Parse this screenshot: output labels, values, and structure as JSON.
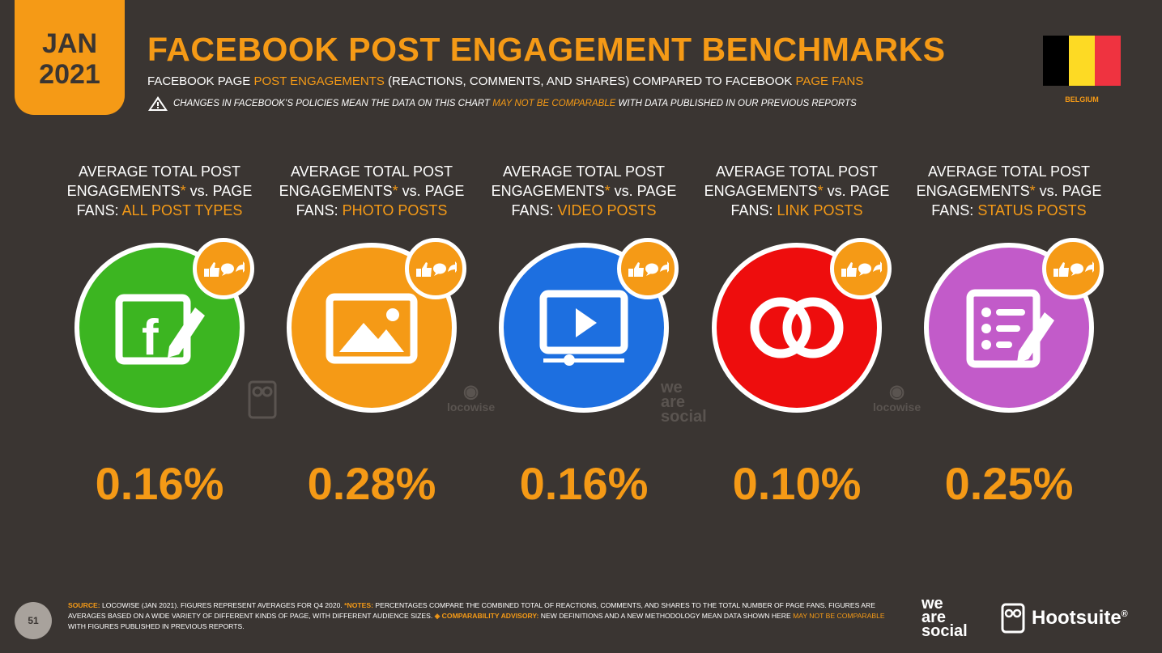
{
  "header": {
    "month": "JAN",
    "year": "2021",
    "title": "FACEBOOK POST ENGAGEMENT BENCHMARKS",
    "subtitle_a": "FACEBOOK PAGE ",
    "subtitle_b": "POST ENGAGEMENTS",
    "subtitle_c": " (REACTIONS, COMMENTS, AND SHARES) COMPARED TO FACEBOOK ",
    "subtitle_d": "PAGE FANS",
    "warning_a": "CHANGES IN FACEBOOK’S POLICIES MEAN THE DATA ON THIS CHART ",
    "warning_b": "MAY NOT BE COMPARABLE",
    "warning_c": " WITH DATA PUBLISHED IN OUR PREVIOUS REPORTS",
    "country": "BELGIUM"
  },
  "colors": {
    "accent": "#f59a16",
    "background": "#3a3532",
    "flag": [
      "#000000",
      "#fdda24",
      "#ef3340"
    ]
  },
  "label_common_a": "AVERAGE TOTAL POST",
  "label_common_b": "ENGAGEMENTS",
  "label_common_star": "*",
  "label_common_c": " vs. PAGE",
  "label_common_d": "FANS: ",
  "metrics": [
    {
      "type": "ALL POST TYPES",
      "value": "0.16%",
      "color": "#3cb521",
      "icon": "facebook-edit-icon"
    },
    {
      "type": "PHOTO POSTS",
      "value": "0.28%",
      "color": "#f59a16",
      "icon": "image-icon"
    },
    {
      "type": "VIDEO POSTS",
      "value": "0.16%",
      "color": "#1d6fe0",
      "icon": "video-play-icon"
    },
    {
      "type": "LINK POSTS",
      "value": "0.10%",
      "color": "#ee0d0d",
      "icon": "link-rings-icon"
    },
    {
      "type": "STATUS POSTS",
      "value": "0.25%",
      "color": "#c25bc9",
      "icon": "status-list-icon"
    }
  ],
  "watermarks": {
    "locowise": "locowise",
    "we_are_social": [
      "we",
      "are",
      "social"
    ]
  },
  "footer": {
    "page_number": "51",
    "source_label": "SOURCE:",
    "source_text": " LOCOWISE (JAN 2021). FIGURES REPRESENT AVERAGES FOR Q4 2020. ",
    "notes_label": "*NOTES:",
    "notes_text": " PERCENTAGES COMPARE THE COMBINED TOTAL OF REACTIONS, COMMENTS, AND SHARES TO THE TOTAL NUMBER OF PAGE FANS. FIGURES ARE AVERAGES BASED ON A WIDE VARIETY OF DIFFERENT KINDS OF PAGE, WITH DIFFERENT AUDIENCE SIZES. ",
    "advisory_label": "◈ COMPARABILITY ADVISORY:",
    "advisory_text": " NEW DEFINITIONS AND A NEW METHODOLOGY MEAN DATA SHOWN HERE ",
    "advisory_highlight": "MAY NOT BE COMPARABLE",
    "advisory_end": " WITH FIGURES PUBLISHED IN PREVIOUS REPORTS.",
    "we_are_social": [
      "we",
      "are",
      "social"
    ],
    "hootsuite": "Hootsuite",
    "hootsuite_mark": "®"
  }
}
